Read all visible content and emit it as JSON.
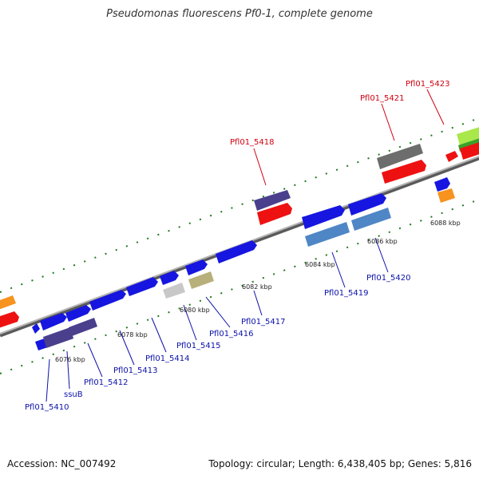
{
  "title": "Pseudomonas fluorescens Pf0-1, complete genome",
  "footer": {
    "accession": "Accession: NC_007492",
    "summary": "Topology: circular; Length: 6,438,405 bp; Genes: 5,816"
  },
  "colors": {
    "forward_blue": "#1616e0",
    "reverse_red": "#ee1111",
    "dark_purple": "#4a3f8c",
    "steel_blue": "#4f86c6",
    "gray": "#6d6d6d",
    "silver": "#c8c8c8",
    "khaki": "#b8b07a",
    "orange": "#f7931e",
    "green": "#3aa02a",
    "lime": "#a8e84a",
    "backbone": "#8a8a8a",
    "tick_green": "#1f7a1f"
  },
  "ticks": [
    {
      "label": "6076 kbp"
    },
    {
      "label": "6078 kbp"
    },
    {
      "label": "6080 kbp"
    },
    {
      "label": "6082 kbp"
    },
    {
      "label": "6084 kbp"
    },
    {
      "label": "6086 kbp"
    },
    {
      "label": "6088 kbp"
    }
  ],
  "top_labels": [
    {
      "name": "Pfl01_5418"
    },
    {
      "name": "Pfl01_5421"
    },
    {
      "name": "Pfl01_5423"
    }
  ],
  "bottom_labels": [
    {
      "name": "Pfl01_5410"
    },
    {
      "name": "ssuB"
    },
    {
      "name": "Pfl01_5412"
    },
    {
      "name": "Pfl01_5413"
    },
    {
      "name": "Pfl01_5414"
    },
    {
      "name": "Pfl01_5415"
    },
    {
      "name": "Pfl01_5416"
    },
    {
      "name": "Pfl01_5417"
    },
    {
      "name": "Pfl01_5419"
    },
    {
      "name": "Pfl01_5420"
    }
  ]
}
